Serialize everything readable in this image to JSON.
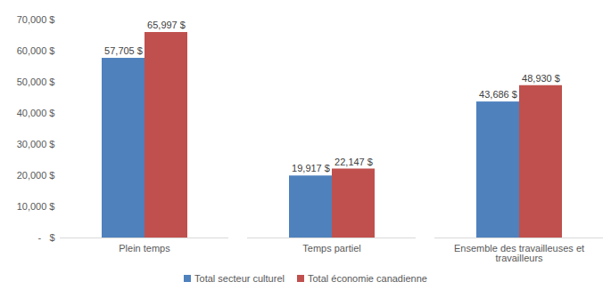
{
  "chart_data": {
    "type": "bar",
    "categories": [
      "Plein temps",
      "Temps partiel",
      "Ensemble des travailleuses et travailleurs"
    ],
    "series": [
      {
        "name": "Total secteur culturel",
        "color": "#4f81bd",
        "values": [
          57705,
          19917,
          43686
        ],
        "value_labels": [
          "57,705 $",
          "19,917 $",
          "43,686 $"
        ]
      },
      {
        "name": "Total économie canadienne",
        "color": "#c0504d",
        "values": [
          65997,
          22147,
          48930
        ],
        "value_labels": [
          "65,997 $",
          "22,147 $",
          "48,930 $"
        ]
      }
    ],
    "ylim": [
      0,
      70000
    ],
    "yticks": [
      {
        "value": 0,
        "label": "-   $"
      },
      {
        "value": 10000,
        "label": "10,000 $"
      },
      {
        "value": 20000,
        "label": "20,000 $"
      },
      {
        "value": 30000,
        "label": "30,000 $"
      },
      {
        "value": 40000,
        "label": "40,000 $"
      },
      {
        "value": 50000,
        "label": "50,000 $"
      },
      {
        "value": 60000,
        "label": "60,000 $"
      },
      {
        "value": 70000,
        "label": "70,000 $"
      }
    ],
    "grid": false,
    "data_labels": true,
    "legend": "bottom"
  }
}
